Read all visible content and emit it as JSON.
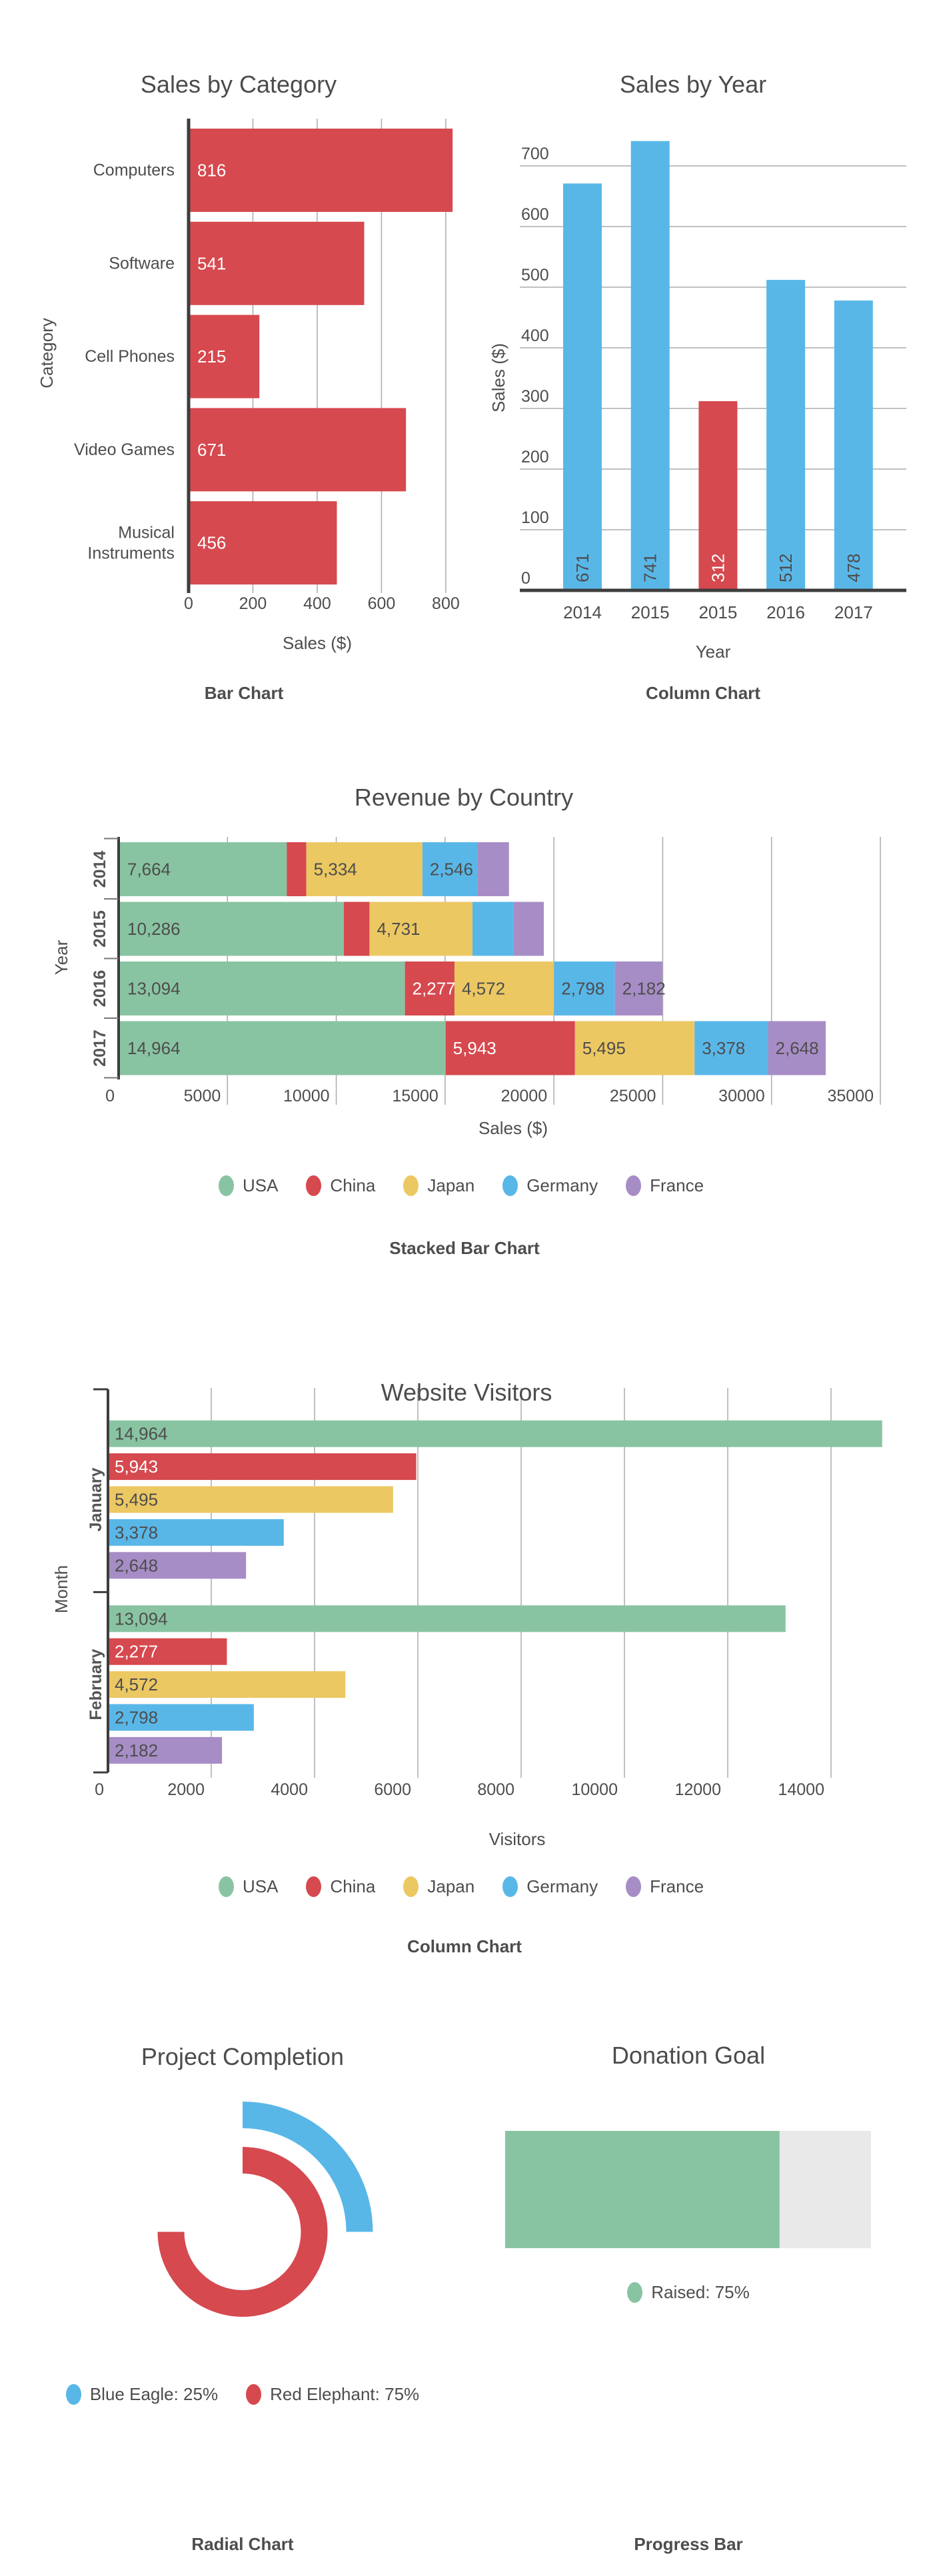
{
  "palette": {
    "red": "#d5494f",
    "blue": "#59b7e8",
    "green": "#89c4a2",
    "yellow": "#ecc863",
    "purple": "#a78dc6",
    "track_gray": "#e9e9e9",
    "text": "#4d4d4d"
  },
  "chart_data": [
    {
      "id": "sales_by_category",
      "type": "bar",
      "orientation": "horizontal",
      "title": "Sales by Category",
      "xlabel": "Sales ($)",
      "ylabel": "Category",
      "caption": "Bar Chart",
      "categories": [
        "Computers",
        "Software",
        "Cell Phones",
        "Video Games",
        "Musical Instruments"
      ],
      "values": [
        816,
        541,
        215,
        671,
        456
      ],
      "bar_color": "#d5494f",
      "value_label_color": "#ffffff",
      "xticks": [
        0,
        200,
        400,
        600,
        800
      ],
      "xlim": [
        0,
        864
      ],
      "grid": "vertical"
    },
    {
      "id": "sales_by_year",
      "type": "column",
      "orientation": "vertical",
      "title": "Sales by Year",
      "xlabel": "Year",
      "ylabel": "Sales ($)",
      "caption": "Column Chart",
      "categories": [
        "2014",
        "2015",
        "2015",
        "2016",
        "2017"
      ],
      "values": [
        671,
        741,
        312,
        512,
        478
      ],
      "bar_colors": [
        "#59b7e8",
        "#59b7e8",
        "#d5494f",
        "#59b7e8",
        "#59b7e8"
      ],
      "yticks": [
        0,
        100,
        200,
        300,
        400,
        500,
        600,
        700
      ],
      "ylim": [
        0,
        770
      ],
      "grid": "horizontal"
    },
    {
      "id": "revenue_by_country",
      "type": "stacked_bar",
      "orientation": "horizontal",
      "title": "Revenue by Country",
      "xlabel": "Sales ($)",
      "ylabel": "Year",
      "caption": "Stacked Bar Chart",
      "categories": [
        "2014",
        "2015",
        "2016",
        "2017"
      ],
      "series": [
        {
          "name": "USA",
          "color": "#89c4a2",
          "values": [
            7664,
            10286,
            13094,
            14964
          ],
          "labels_shown": [
            true,
            true,
            true,
            true
          ]
        },
        {
          "name": "China",
          "color": "#d5494f",
          "values": [
            900,
            1180,
            2277,
            5943
          ],
          "labels_shown": [
            false,
            false,
            true,
            true
          ]
        },
        {
          "name": "Japan",
          "color": "#ecc863",
          "values": [
            5334,
            4731,
            4572,
            5495
          ],
          "labels_shown": [
            true,
            true,
            true,
            true
          ]
        },
        {
          "name": "Germany",
          "color": "#59b7e8",
          "values": [
            2546,
            1880,
            2798,
            3378
          ],
          "labels_shown": [
            true,
            false,
            true,
            true
          ]
        },
        {
          "name": "France",
          "color": "#a78dc6",
          "values": [
            1430,
            1400,
            2182,
            2648
          ],
          "labels_shown": [
            false,
            false,
            true,
            true
          ]
        }
      ],
      "xticks": [
        0,
        5000,
        10000,
        15000,
        20000,
        25000,
        30000,
        35000
      ],
      "legend": [
        "USA",
        "China",
        "Japan",
        "Germany",
        "France"
      ],
      "legend_position": "bottom-center"
    },
    {
      "id": "website_visitors",
      "type": "grouped_bar",
      "orientation": "horizontal",
      "title": "Website Visitors",
      "xlabel": "Visitors",
      "ylabel": "Month",
      "caption": "Column Chart",
      "categories": [
        "January",
        "February"
      ],
      "series": [
        {
          "name": "USA",
          "color": "#89c4a2",
          "values": [
            14964,
            13094
          ]
        },
        {
          "name": "China",
          "color": "#d5494f",
          "values": [
            5943,
            2277
          ]
        },
        {
          "name": "Japan",
          "color": "#ecc863",
          "values": [
            5495,
            4572
          ]
        },
        {
          "name": "Germany",
          "color": "#59b7e8",
          "values": [
            3378,
            2798
          ]
        },
        {
          "name": "France",
          "color": "#a78dc6",
          "values": [
            2648,
            2182
          ]
        }
      ],
      "xticks": [
        0,
        2000,
        4000,
        6000,
        8000,
        10000,
        12000,
        14000
      ],
      "legend": [
        "USA",
        "China",
        "Japan",
        "Germany",
        "France"
      ],
      "legend_position": "bottom-center"
    },
    {
      "id": "project_completion",
      "type": "radial",
      "title": "Project Completion",
      "caption": "Radial Chart",
      "series": [
        {
          "name": "Blue Eagle",
          "value": 25,
          "color": "#59b7e8"
        },
        {
          "name": "Red Elephant",
          "value": 75,
          "color": "#d5494f"
        }
      ],
      "legend_position": "bottom-center"
    },
    {
      "id": "donation_goal",
      "type": "progress",
      "title": "Donation Goal",
      "caption": "Progress Bar",
      "series": [
        {
          "name": "Raised",
          "value": 75,
          "color": "#89c4a2"
        }
      ],
      "track_color": "#e9e9e9",
      "legend_position": "bottom-center"
    }
  ]
}
